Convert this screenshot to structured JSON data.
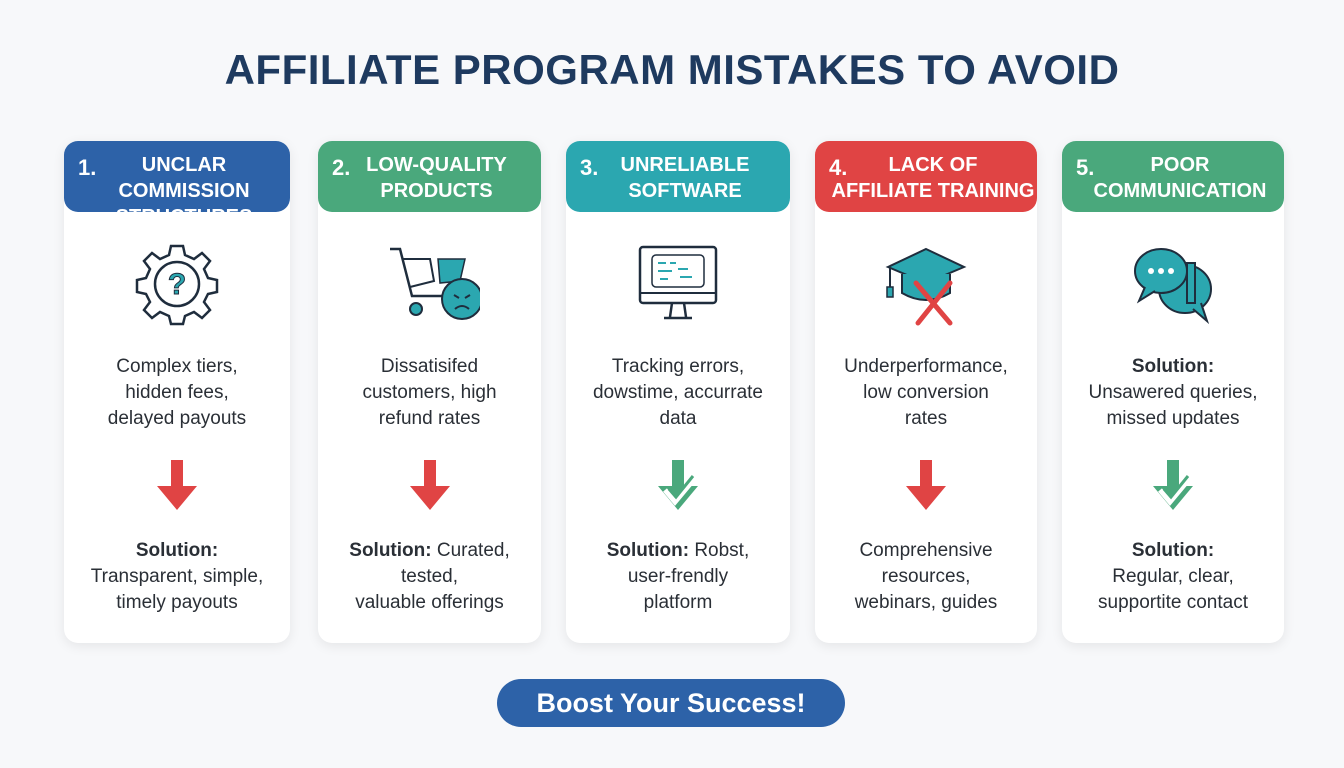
{
  "title": "AFFILIATE PROGRAM MISTAKES TO AVOID",
  "colors": {
    "title": "#1e3a5f",
    "blue": "#2d62a8",
    "green": "#4aa87c",
    "teal": "#2ba7b0",
    "red": "#e04444"
  },
  "cards": [
    {
      "number": "1.",
      "title_line1": "UNCLAR",
      "title_line2": "COMMISSION STRUCTURES",
      "color": "#2d62a8",
      "icon": "gear-question-icon",
      "desc_label": "",
      "description": [
        "Complex tiers,",
        "hidden fees,",
        "delayed payouts"
      ],
      "arrow": "red-down-arrow-icon",
      "solution_label": "Solution:",
      "solution": [
        "Transparent, simple,",
        "timely payouts"
      ],
      "solution_inline": false
    },
    {
      "number": "2.",
      "title_line1": "LOW-QUALITY",
      "title_line2": "PRODUCTS",
      "color": "#4aa87c",
      "icon": "broken-cart-angry-face-icon",
      "desc_label": "",
      "description": [
        "Dissatisifed",
        "customers, high",
        "refund rates"
      ],
      "arrow": "red-down-arrow-icon",
      "solution_label": "Solution:",
      "solution": [
        "Curated,",
        "tested,",
        "valuable offerings"
      ],
      "solution_inline": true
    },
    {
      "number": "3.",
      "title_line1": "UNRELIABLE",
      "title_line2": "SOFTWARE",
      "color": "#2ba7b0",
      "icon": "monitor-code-icon",
      "desc_label": "",
      "description": [
        "Tracking errors,",
        "dowstime, accurrate",
        "data"
      ],
      "arrow": "green-check-arrow-icon",
      "solution_label": "Solution:",
      "solution": [
        "Robst,",
        "user-frendly",
        "platform"
      ],
      "solution_inline": true
    },
    {
      "number": "4.",
      "title_line1": "LACK OF",
      "title_line2": "AFFILIATE TRAINING",
      "color": "#e04444",
      "icon": "graduation-cap-x-icon",
      "desc_label": "",
      "description": [
        "Underperformance,",
        "low conversion",
        "rates"
      ],
      "arrow": "red-down-arrow-icon",
      "solution_label": "",
      "solution": [
        "Comprehensive",
        "resources,",
        "webinars, guides"
      ],
      "solution_inline": false
    },
    {
      "number": "5.",
      "title_line1": "POOR",
      "title_line2": "COMMUNICATION",
      "color": "#4aa87c",
      "icon": "chat-bubbles-icon",
      "desc_label": "Solution:",
      "description": [
        "Unsawered queries,",
        "missed updates"
      ],
      "arrow": "green-check-arrow-icon",
      "solution_label": "Solution:",
      "solution": [
        "Regular, clear,",
        "supportite contact"
      ],
      "solution_inline": false
    }
  ],
  "cta_label": "Boost Your Success!"
}
